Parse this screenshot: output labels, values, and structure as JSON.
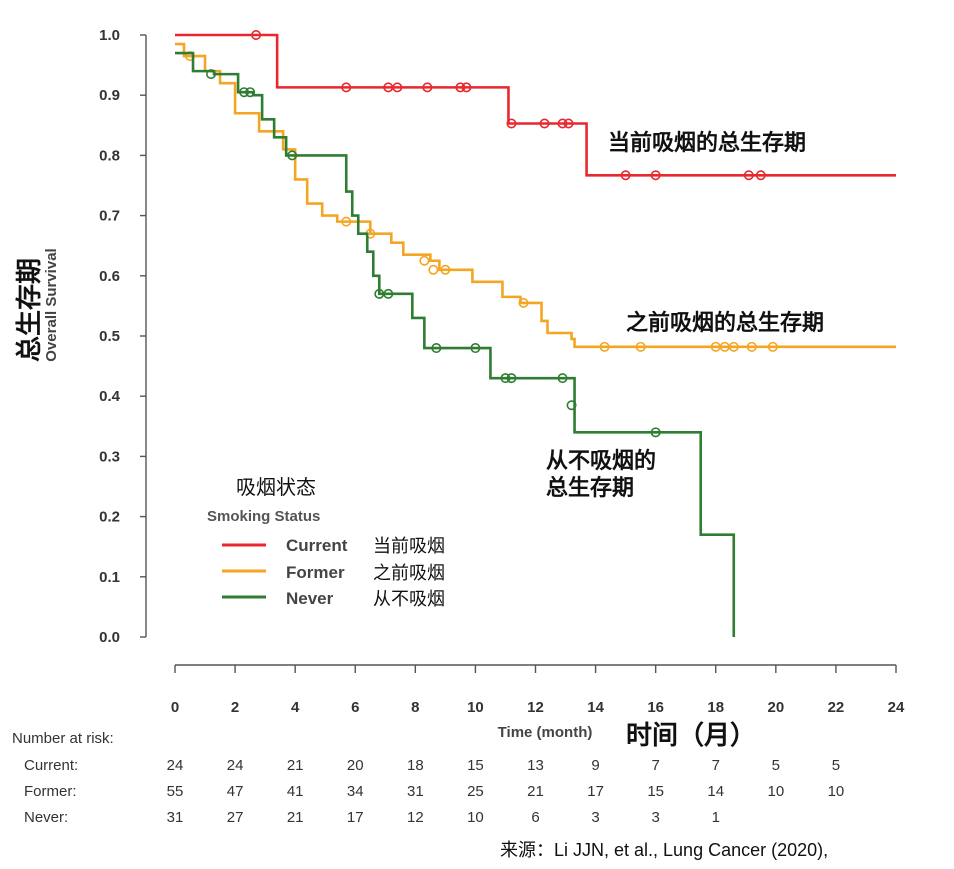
{
  "chart_data": {
    "type": "line",
    "step": true,
    "x_ticks": [
      "0",
      "2",
      "4",
      "6",
      "8",
      "10",
      "12",
      "14",
      "16",
      "18",
      "20",
      "22",
      "24"
    ],
    "y_ticks": [
      "0.0",
      "0.1",
      "0.2",
      "0.3",
      "0.4",
      "0.5",
      "0.6",
      "0.7",
      "0.8",
      "0.9",
      "1.0"
    ],
    "xlim": [
      0,
      24
    ],
    "ylim": [
      0,
      1
    ],
    "xlabel": "Time (month)",
    "xlabel_cn": "时间（月）",
    "ylabel": "Overall Survival",
    "ylabel_cn": "总生存期",
    "legend": {
      "title_cn": "吸烟状态",
      "title": "Smoking Status",
      "placement": "bottom-left",
      "entries": [
        {
          "label": "Current",
          "label_cn": "当前吸烟",
          "color": "#e8282e"
        },
        {
          "label": "Former",
          "label_cn": "之前吸烟",
          "color": "#f4a522"
        },
        {
          "label": "Never",
          "label_cn": "从不吸烟",
          "color": "#2e7d32"
        }
      ]
    },
    "series": [
      {
        "name": "Current",
        "color": "#e8282e",
        "steps": [
          [
            0,
            1.0
          ],
          [
            3.4,
            0.913
          ],
          [
            11.1,
            0.853
          ],
          [
            13.7,
            0.767
          ],
          [
            24,
            0.767
          ]
        ],
        "censor": [
          [
            2.7,
            1.0
          ],
          [
            5.7,
            0.913
          ],
          [
            7.1,
            0.913
          ],
          [
            7.4,
            0.913
          ],
          [
            8.4,
            0.913
          ],
          [
            9.5,
            0.913
          ],
          [
            9.7,
            0.913
          ],
          [
            11.2,
            0.853
          ],
          [
            12.3,
            0.853
          ],
          [
            12.9,
            0.853
          ],
          [
            13.1,
            0.853
          ],
          [
            15.0,
            0.767
          ],
          [
            16.0,
            0.767
          ],
          [
            19.1,
            0.767
          ],
          [
            19.5,
            0.767
          ]
        ]
      },
      {
        "name": "Former",
        "color": "#f4a522",
        "steps": [
          [
            0,
            0.985
          ],
          [
            0.3,
            0.965
          ],
          [
            1.0,
            0.94
          ],
          [
            1.5,
            0.92
          ],
          [
            2.0,
            0.87
          ],
          [
            2.8,
            0.84
          ],
          [
            3.6,
            0.81
          ],
          [
            4.0,
            0.76
          ],
          [
            4.4,
            0.72
          ],
          [
            4.9,
            0.7
          ],
          [
            5.4,
            0.69
          ],
          [
            6.5,
            0.67
          ],
          [
            7.2,
            0.655
          ],
          [
            7.6,
            0.635
          ],
          [
            8.5,
            0.625
          ],
          [
            8.8,
            0.61
          ],
          [
            9.9,
            0.59
          ],
          [
            10.9,
            0.565
          ],
          [
            11.5,
            0.555
          ],
          [
            12.2,
            0.525
          ],
          [
            12.4,
            0.505
          ],
          [
            13.2,
            0.495
          ],
          [
            13.3,
            0.482
          ],
          [
            24,
            0.482
          ]
        ],
        "censor": [
          [
            0.5,
            0.965
          ],
          [
            5.7,
            0.69
          ],
          [
            6.5,
            0.67
          ],
          [
            8.3,
            0.625
          ],
          [
            8.6,
            0.61
          ],
          [
            9.0,
            0.61
          ],
          [
            11.6,
            0.555
          ],
          [
            14.3,
            0.482
          ],
          [
            15.5,
            0.482
          ],
          [
            18.0,
            0.482
          ],
          [
            18.3,
            0.482
          ],
          [
            18.6,
            0.482
          ],
          [
            19.2,
            0.482
          ],
          [
            19.9,
            0.482
          ]
        ]
      },
      {
        "name": "Never",
        "color": "#2e7d32",
        "steps": [
          [
            0,
            0.97
          ],
          [
            0.6,
            0.94
          ],
          [
            1.3,
            0.935
          ],
          [
            2.1,
            0.905
          ],
          [
            2.6,
            0.9
          ],
          [
            2.9,
            0.86
          ],
          [
            3.3,
            0.83
          ],
          [
            3.7,
            0.8
          ],
          [
            5.5,
            0.8
          ],
          [
            5.7,
            0.74
          ],
          [
            5.9,
            0.7
          ],
          [
            6.1,
            0.67
          ],
          [
            6.4,
            0.64
          ],
          [
            6.6,
            0.6
          ],
          [
            6.8,
            0.57
          ],
          [
            7.3,
            0.57
          ],
          [
            7.9,
            0.53
          ],
          [
            8.3,
            0.48
          ],
          [
            10.2,
            0.48
          ],
          [
            10.5,
            0.43
          ],
          [
            13.1,
            0.43
          ],
          [
            13.3,
            0.34
          ],
          [
            17.5,
            0.34
          ],
          [
            17.5,
            0.17
          ],
          [
            18.6,
            0.17
          ],
          [
            18.6,
            0.0
          ]
        ],
        "censor": [
          [
            1.2,
            0.935
          ],
          [
            2.3,
            0.905
          ],
          [
            2.5,
            0.905
          ],
          [
            3.9,
            0.8
          ],
          [
            6.8,
            0.57
          ],
          [
            7.1,
            0.57
          ],
          [
            8.7,
            0.48
          ],
          [
            10.0,
            0.48
          ],
          [
            11.0,
            0.43
          ],
          [
            11.2,
            0.43
          ],
          [
            12.9,
            0.43
          ],
          [
            13.2,
            0.385
          ],
          [
            16.0,
            0.34
          ]
        ]
      }
    ],
    "annotations": [
      {
        "text": "当前吸烟的总生存期",
        "series": "Current"
      },
      {
        "text": "之前吸烟的总生存期",
        "series": "Former"
      },
      {
        "text": "从不吸烟的",
        "series": "Never"
      },
      {
        "text": "总生存期",
        "series": "Never"
      }
    ],
    "risk_table": {
      "title": "Number at risk:",
      "rows": [
        {
          "label": "Current:",
          "values": [
            "24",
            "24",
            "21",
            "20",
            "18",
            "15",
            "13",
            "9",
            "7",
            "7",
            "5",
            "5"
          ]
        },
        {
          "label": "Former:",
          "values": [
            "55",
            "47",
            "41",
            "34",
            "31",
            "25",
            "21",
            "17",
            "15",
            "14",
            "10",
            "10"
          ]
        },
        {
          "label": "Never:",
          "values": [
            "31",
            "27",
            "21",
            "17",
            "12",
            "10",
            "6",
            "3",
            "3",
            "1"
          ]
        }
      ]
    }
  },
  "source": "来源：Li JJN, et al., Lung Cancer (2020),"
}
